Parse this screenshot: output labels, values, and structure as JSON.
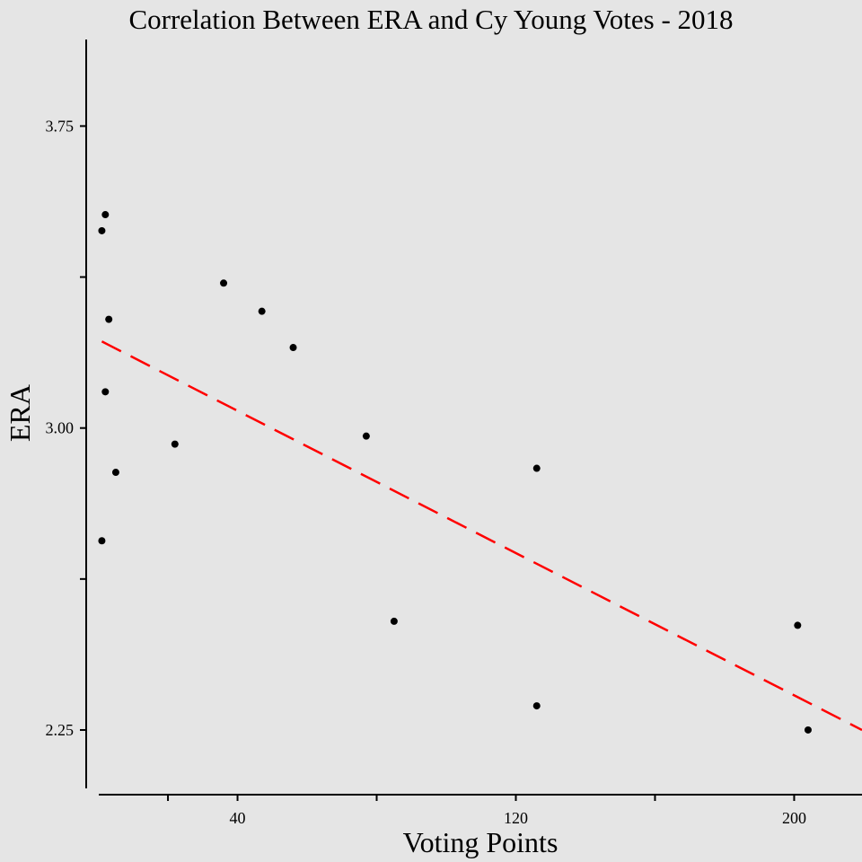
{
  "chart_data": {
    "type": "scatter",
    "title": "Correlation Between ERA and Cy Young Votes - 2018",
    "xlabel": "Voting Points",
    "ylabel": "ERA",
    "xlim": [
      -3.5,
      219.5
    ],
    "ylim": [
      2.105,
      3.965
    ],
    "x_ticks": [
      20,
      40,
      80,
      120,
      160,
      200
    ],
    "x_tick_labels": [
      "",
      "40",
      "",
      "120",
      "",
      "200"
    ],
    "y_ticks": [
      2.25,
      2.625,
      3.0,
      3.375,
      3.75
    ],
    "y_tick_labels": [
      "2.25",
      "",
      "3.00",
      "",
      "3.75"
    ],
    "grid": false,
    "points": [
      {
        "x": 1,
        "y": 3.49
      },
      {
        "x": 2,
        "y": 3.53
      },
      {
        "x": 3,
        "y": 3.27
      },
      {
        "x": 2,
        "y": 3.09
      },
      {
        "x": 1,
        "y": 2.72
      },
      {
        "x": 5,
        "y": 2.89
      },
      {
        "x": 22,
        "y": 2.96
      },
      {
        "x": 36,
        "y": 3.36
      },
      {
        "x": 47,
        "y": 3.29
      },
      {
        "x": 56,
        "y": 3.2
      },
      {
        "x": 77,
        "y": 2.98
      },
      {
        "x": 85,
        "y": 2.52
      },
      {
        "x": 126,
        "y": 2.9
      },
      {
        "x": 126,
        "y": 2.31
      },
      {
        "x": 201,
        "y": 2.51
      },
      {
        "x": 204,
        "y": 2.25
      }
    ],
    "trendline": {
      "style": "dashed",
      "color": "#ff0000",
      "x": [
        1,
        219.5
      ],
      "y": [
        3.215,
        2.25
      ]
    },
    "point_color": "#000000"
  }
}
